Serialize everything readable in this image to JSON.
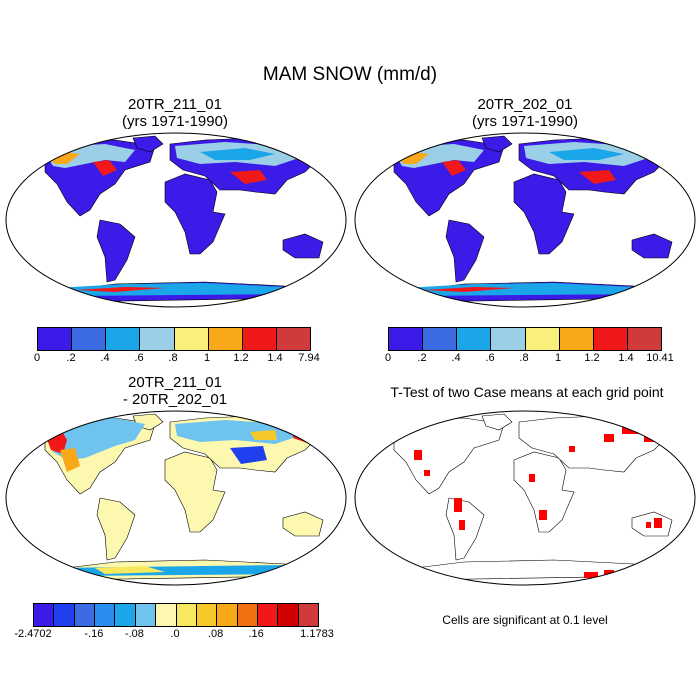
{
  "main_title": "MAM SNOW (mm/d)",
  "panels": [
    {
      "title_line1": "20TR_211_01",
      "title_line2": "(yrs 1971-1990)",
      "colorbar": {
        "colors": [
          "#3a1be8",
          "#3c6be2",
          "#1ba6ea",
          "#9bcfe8",
          "#f8f07a",
          "#f8a818",
          "#f01818",
          "#d03a3a"
        ],
        "labels": [
          "0",
          ".2",
          ".4",
          ".6",
          ".8",
          "1",
          "1.2",
          "1.4",
          "7.94"
        ]
      }
    },
    {
      "title_line1": "20TR_202_01",
      "title_line2": "(yrs 1971-1990)",
      "colorbar": {
        "colors": [
          "#3a1be8",
          "#3c6be2",
          "#1ba6ea",
          "#9bcfe8",
          "#f8f07a",
          "#f8a818",
          "#f01818",
          "#d03a3a"
        ],
        "labels": [
          "0",
          ".2",
          ".4",
          ".6",
          ".8",
          "1",
          "1.2",
          "1.4",
          "10.41"
        ]
      }
    },
    {
      "title_line1": "20TR_211_01",
      "title_line2": "- 20TR_202_01",
      "colorbar": {
        "colors": [
          "#3a1be8",
          "#2040f0",
          "#3c6be2",
          "#2a8ef0",
          "#1ba6ea",
          "#6ec4ee",
          "#fdf8b0",
          "#f8e860",
          "#f8c828",
          "#f8a818",
          "#f07010",
          "#f01818",
          "#d00000",
          "#d03a3a"
        ],
        "labels": [
          "-2.4702",
          "-.16",
          "-.08",
          ".0",
          ".08",
          ".16",
          "1.1783"
        ]
      }
    },
    {
      "title": "T-Test of two Case means at each grid point",
      "note": "Cells are significant at 0.1 level"
    }
  ]
}
